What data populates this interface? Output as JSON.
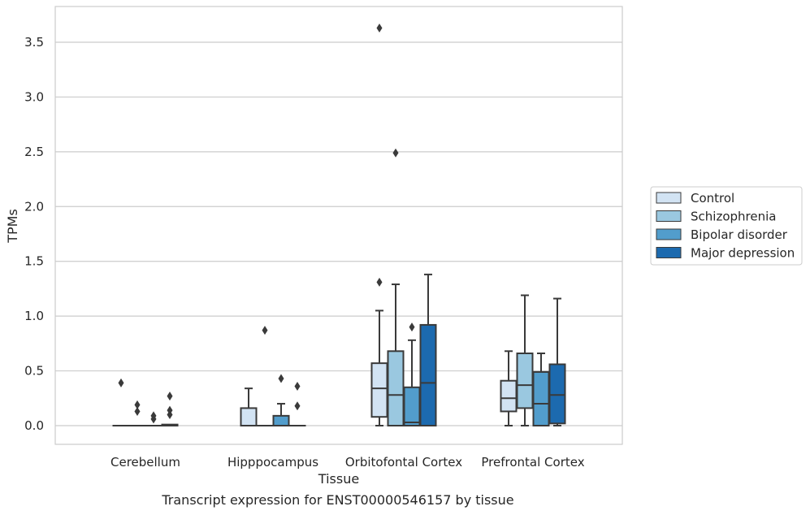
{
  "caption": "Transcript expression for ENST00000546157 by tissue",
  "chart_data": {
    "type": "box",
    "xlabel": "Tissue",
    "ylabel": "TPMs",
    "ylim": [
      -0.18,
      3.84
    ],
    "yticks": [
      0.0,
      0.5,
      1.0,
      1.5,
      2.0,
      2.5,
      3.0,
      3.5
    ],
    "ytick_labels": [
      "0.0",
      "0.5",
      "1.0",
      "1.5",
      "2.0",
      "2.5",
      "3.0",
      "3.5"
    ],
    "categories": [
      "Cerebellum",
      "Hipppocampus",
      "Orbitofontal Cortex",
      "Prefrontal Cortex"
    ],
    "grid": true,
    "legend_position": "right",
    "series": [
      {
        "name": "Control",
        "color": "#d2e3f3",
        "boxes": [
          {
            "whislo": 0,
            "q1": 0,
            "med": 0,
            "q3": 0,
            "whishi": 0,
            "fliers": [
              0.39
            ]
          },
          {
            "whislo": 0,
            "q1": 0,
            "med": 0,
            "q3": 0.16,
            "whishi": 0.34,
            "fliers": []
          },
          {
            "whislo": 0,
            "q1": 0.08,
            "med": 0.34,
            "q3": 0.57,
            "whishi": 1.05,
            "fliers": [
              1.31,
              3.63
            ]
          },
          {
            "whislo": 0,
            "q1": 0.13,
            "med": 0.25,
            "q3": 0.41,
            "whishi": 0.68,
            "fliers": []
          }
        ]
      },
      {
        "name": "Schizophrenia",
        "color": "#9ac8e0",
        "boxes": [
          {
            "whislo": 0,
            "q1": 0,
            "med": 0,
            "q3": 0,
            "whishi": 0,
            "fliers": [
              0.13,
              0.19
            ]
          },
          {
            "whislo": 0,
            "q1": 0,
            "med": 0,
            "q3": 0,
            "whishi": 0,
            "fliers": [
              0.87
            ]
          },
          {
            "whislo": 0,
            "q1": 0,
            "med": 0.28,
            "q3": 0.68,
            "whishi": 1.29,
            "fliers": [
              2.49
            ]
          },
          {
            "whislo": 0,
            "q1": 0.16,
            "med": 0.37,
            "q3": 0.66,
            "whishi": 1.19,
            "fliers": []
          }
        ]
      },
      {
        "name": "Bipolar disorder",
        "color": "#529dcc",
        "boxes": [
          {
            "whislo": 0,
            "q1": 0,
            "med": 0,
            "q3": 0,
            "whishi": 0,
            "fliers": [
              0.06,
              0.09
            ]
          },
          {
            "whislo": 0,
            "q1": 0,
            "med": 0,
            "q3": 0.09,
            "whishi": 0.2,
            "fliers": [
              0.43
            ]
          },
          {
            "whislo": 0,
            "q1": 0,
            "med": 0.03,
            "q3": 0.35,
            "whishi": 0.78,
            "fliers": [
              0.9
            ]
          },
          {
            "whislo": 0,
            "q1": 0,
            "med": 0.2,
            "q3": 0.49,
            "whishi": 0.66,
            "fliers": []
          }
        ]
      },
      {
        "name": "Major depression",
        "color": "#1c6aaf",
        "boxes": [
          {
            "whislo": 0,
            "q1": 0,
            "med": 0,
            "q3": 0.01,
            "whishi": 0.01,
            "fliers": [
              0.1,
              0.14,
              0.27
            ]
          },
          {
            "whislo": 0,
            "q1": 0,
            "med": 0,
            "q3": 0,
            "whishi": 0,
            "fliers": [
              0.18,
              0.36
            ]
          },
          {
            "whislo": 0,
            "q1": 0,
            "med": 0.39,
            "q3": 0.92,
            "whishi": 1.38,
            "fliers": []
          },
          {
            "whislo": 0,
            "q1": 0.02,
            "med": 0.28,
            "q3": 0.56,
            "whishi": 1.16,
            "fliers": []
          }
        ]
      }
    ]
  }
}
